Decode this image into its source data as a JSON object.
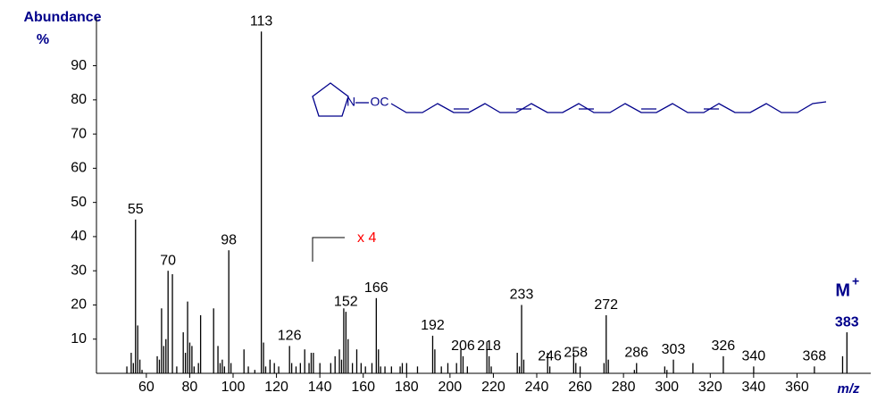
{
  "chart_data": {
    "type": "bar",
    "y_label": "Abundance",
    "y_label_unit": "%",
    "x_label": "m/z",
    "molecular_ion": "M",
    "molecular_ion_charge": "+",
    "annotation": "x 4",
    "annotation_color": "#ff0000",
    "structure": {
      "amine": "N",
      "linker": "OC"
    },
    "structure_color": "#00008b",
    "label_color": "#00008b",
    "color": "#000000",
    "x": [
      51,
      53,
      54,
      55,
      56,
      57,
      58,
      65,
      66,
      67,
      68,
      69,
      70,
      72,
      74,
      77,
      78,
      79,
      80,
      81,
      82,
      84,
      85,
      91,
      93,
      94,
      95,
      96,
      98,
      99,
      105,
      107,
      110,
      113,
      114,
      115,
      117,
      119,
      121,
      126,
      127,
      129,
      131,
      133,
      135,
      136,
      137,
      140,
      145,
      147,
      149,
      150,
      151,
      152,
      153,
      155,
      157,
      159,
      161,
      164,
      166,
      167,
      168,
      170,
      173,
      177,
      178,
      180,
      185,
      192,
      193,
      196,
      199,
      203,
      205,
      206,
      208,
      217,
      218,
      219,
      231,
      232,
      233,
      234,
      245,
      246,
      257,
      258,
      260,
      271,
      272,
      273,
      285,
      286,
      299,
      300,
      303,
      312,
      326,
      340,
      368,
      381,
      383
    ],
    "values": [
      2,
      6,
      3,
      45,
      14,
      4,
      1,
      5,
      4,
      19,
      8,
      10,
      30,
      29,
      2,
      12,
      6,
      21,
      9,
      8,
      2,
      3,
      17,
      19,
      8,
      3,
      4,
      2,
      36,
      3,
      7,
      2,
      1,
      100,
      9,
      2,
      4,
      3,
      2,
      8,
      3,
      2,
      3,
      7,
      3,
      6,
      6,
      3,
      3,
      5,
      7,
      4,
      19,
      18,
      10,
      3,
      7,
      3,
      2,
      3,
      22,
      7,
      2,
      2,
      2,
      2,
      3,
      3,
      2,
      11,
      7,
      2,
      3,
      3,
      7,
      5,
      2,
      9,
      5,
      2,
      6,
      2,
      20,
      4,
      6,
      2,
      6,
      3,
      2,
      3,
      17,
      4,
      1,
      3,
      2,
      1,
      4,
      3,
      5,
      2,
      2,
      5,
      12
    ],
    "peak_labels": [
      null,
      null,
      null,
      55,
      null,
      null,
      null,
      null,
      null,
      null,
      null,
      null,
      70,
      null,
      null,
      null,
      null,
      null,
      null,
      null,
      null,
      null,
      null,
      null,
      null,
      null,
      null,
      null,
      98,
      null,
      null,
      null,
      null,
      113,
      null,
      null,
      null,
      null,
      null,
      126,
      null,
      null,
      null,
      null,
      null,
      null,
      null,
      null,
      null,
      null,
      null,
      null,
      null,
      152,
      null,
      null,
      null,
      null,
      null,
      null,
      166,
      null,
      null,
      null,
      null,
      null,
      null,
      null,
      null,
      192,
      null,
      null,
      null,
      null,
      null,
      206,
      null,
      null,
      218,
      null,
      null,
      null,
      233,
      null,
      null,
      246,
      null,
      258,
      null,
      null,
      272,
      null,
      null,
      286,
      null,
      null,
      303,
      null,
      326,
      340,
      368,
      null,
      383
    ],
    "xlim": [
      37,
      394
    ],
    "ylim": [
      0,
      104
    ],
    "xticks": [
      60,
      80,
      100,
      120,
      140,
      160,
      180,
      200,
      220,
      240,
      260,
      280,
      300,
      320,
      340,
      360
    ],
    "yticks": [
      10,
      20,
      30,
      40,
      50,
      60,
      70,
      80,
      90
    ]
  }
}
